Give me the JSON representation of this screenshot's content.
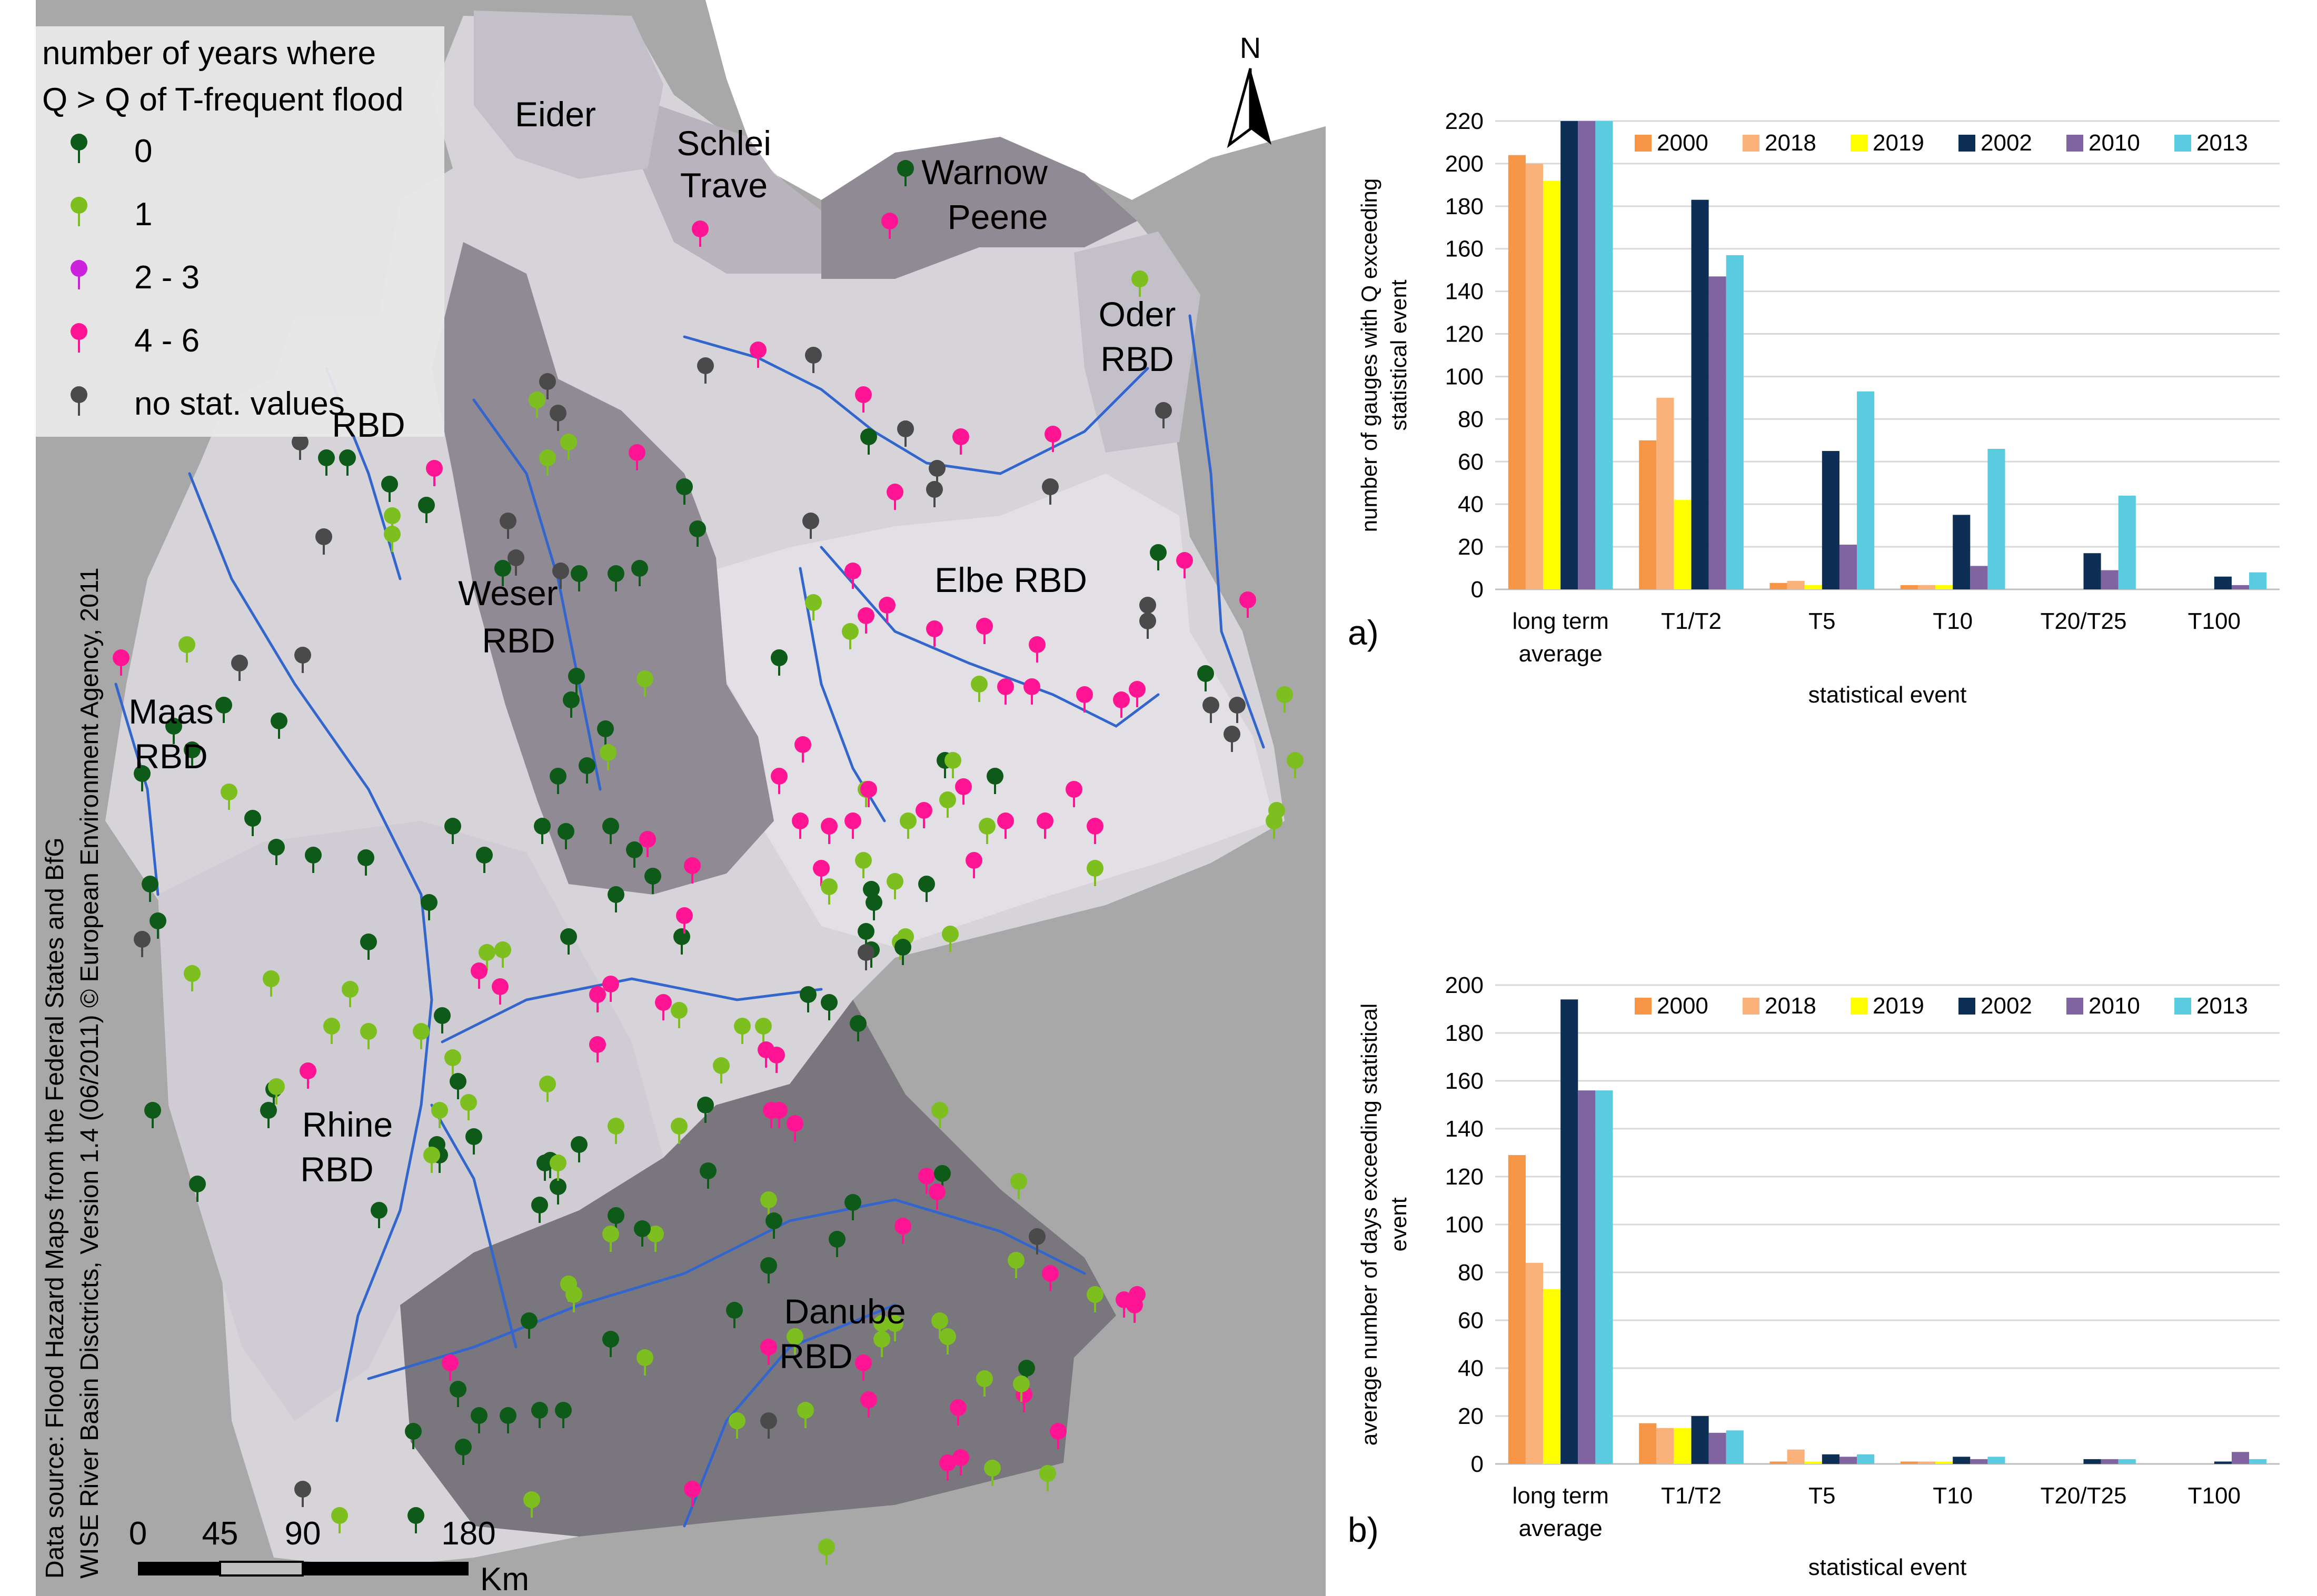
{
  "map": {
    "legend_title_line1": "number of years where",
    "legend_title_line2": "Q > Q of T-frequent flood",
    "legend_items": [
      {
        "label": "0",
        "color": "#0e5a18"
      },
      {
        "label": "1",
        "color": "#7cbf1e"
      },
      {
        "label": "2 - 3",
        "color": "#cc22dd"
      },
      {
        "label": "4 - 6",
        "color": "#ff1493"
      },
      {
        "label": "no stat. values",
        "color": "#4a4a4a"
      }
    ],
    "region_labels": {
      "eider": "Eider",
      "schlei": "Schlei",
      "trave": "Trave",
      "warnow": "Warnow",
      "peene": "Peene",
      "oder": "Oder",
      "oder_rbd": "RBD",
      "weser": "Weser",
      "weser_rbd": "RBD",
      "elbe": "Elbe RBD",
      "maas": "Maas",
      "maas_rbd": "RBD",
      "rhine": "Rhine",
      "rhine_rbd": "RBD",
      "danube": "Danube",
      "danube_rbd": "RBD",
      "ems_rbd": "RBD"
    },
    "north_label": "N",
    "scale_labels": [
      "0",
      "45",
      "90",
      "180"
    ],
    "scale_unit": "Km",
    "source_line1": "Data source: Flood Hazard Maps from the Federal States and BfG",
    "source_line2": "WISE River Basin Disctricts, Version 1.4 (06/2011) © European Environment Agency, 2011",
    "colors": {
      "outside": "#a8a8a8",
      "light_region": "#d6d3d9",
      "mid_region": "#c4c0c9",
      "dark_region": "#8f8a93",
      "darker_region": "#7a767e",
      "river": "#3366cc"
    }
  },
  "chart_data": [
    {
      "type": "bar",
      "panel_label": "a)",
      "categories": [
        "long term average",
        "T1/T2",
        "T5",
        "T10",
        "T20/T25",
        "T100"
      ],
      "category_lines": [
        [
          "long term",
          "average"
        ],
        [
          "T1/T2"
        ],
        [
          "T5"
        ],
        [
          "T10"
        ],
        [
          "T20/T25"
        ],
        [
          "T100"
        ]
      ],
      "series": [
        {
          "name": "2000",
          "color": "#f79646",
          "values": [
            204,
            70,
            3,
            2,
            0,
            0
          ]
        },
        {
          "name": "2018",
          "color": "#fbb27a",
          "values": [
            200,
            90,
            4,
            2,
            0,
            0
          ]
        },
        {
          "name": "2019",
          "color": "#ffff00",
          "values": [
            192,
            42,
            2,
            2,
            0,
            0
          ]
        },
        {
          "name": "2002",
          "color": "#0e2f55",
          "values": [
            220,
            183,
            65,
            35,
            17,
            6
          ]
        },
        {
          "name": "2010",
          "color": "#8064a2",
          "values": [
            220,
            147,
            21,
            11,
            9,
            2
          ]
        },
        {
          "name": "2013",
          "color": "#5bcbe0",
          "values": [
            220,
            157,
            93,
            66,
            44,
            8
          ]
        }
      ],
      "title": "",
      "xlabel": "statistical event",
      "ylabel_lines": [
        "number of gauges with Q exceeding",
        "statistical event"
      ],
      "ylim": [
        0,
        220
      ],
      "yticks": [
        "0",
        "20",
        "40",
        "60",
        "80",
        "100",
        "120",
        "140",
        "160",
        "180",
        "200",
        "220"
      ],
      "grid": true,
      "legend": "top"
    },
    {
      "type": "bar",
      "panel_label": "b)",
      "categories": [
        "long term average",
        "T1/T2",
        "T5",
        "T10",
        "T20/T25",
        "T100"
      ],
      "category_lines": [
        [
          "long term",
          "average"
        ],
        [
          "T1/T2"
        ],
        [
          "T5"
        ],
        [
          "T10"
        ],
        [
          "T20/T25"
        ],
        [
          "T100"
        ]
      ],
      "series": [
        {
          "name": "2000",
          "color": "#f79646",
          "values": [
            129,
            17,
            1,
            1,
            0,
            0
          ]
        },
        {
          "name": "2018",
          "color": "#fbb27a",
          "values": [
            84,
            15,
            6,
            1,
            0,
            0
          ]
        },
        {
          "name": "2019",
          "color": "#ffff00",
          "values": [
            73,
            15,
            1,
            1,
            0,
            0
          ]
        },
        {
          "name": "2002",
          "color": "#0e2f55",
          "values": [
            194,
            20,
            4,
            3,
            2,
            1
          ]
        },
        {
          "name": "2010",
          "color": "#8064a2",
          "values": [
            156,
            13,
            3,
            2,
            2,
            5
          ]
        },
        {
          "name": "2013",
          "color": "#5bcbe0",
          "values": [
            156,
            14,
            4,
            3,
            2,
            2
          ]
        }
      ],
      "title": "",
      "xlabel": "statistical event",
      "ylabel_lines": [
        "average number of days exceeding statistical",
        "event"
      ],
      "ylim": [
        0,
        200
      ],
      "yticks": [
        "0",
        "20",
        "40",
        "60",
        "80",
        "100",
        "120",
        "140",
        "160",
        "180",
        "200"
      ],
      "grid": true,
      "legend": "top"
    }
  ]
}
